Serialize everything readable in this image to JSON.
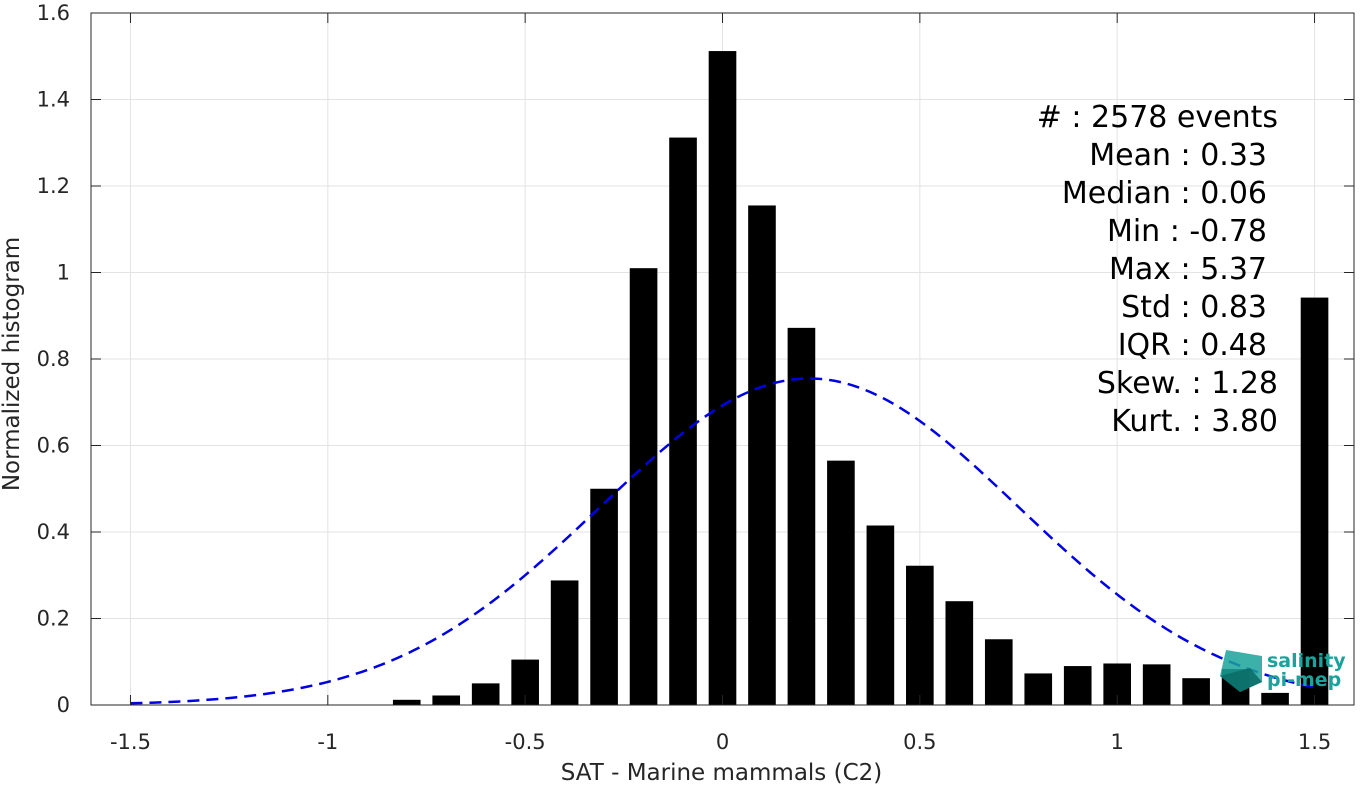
{
  "chart_data": {
    "type": "bar",
    "title": "",
    "xlabel": "SAT - Marine mammals (C2)",
    "ylabel": "Normalized histogram",
    "xlim": [
      -1.6,
      1.6
    ],
    "ylim": [
      0,
      1.6
    ],
    "xticks": [
      -1.5,
      -1,
      -0.5,
      0,
      0.5,
      1,
      1.5
    ],
    "xtick_labels": [
      "-1.5",
      "-1",
      "-0.5",
      "0",
      "0.5",
      "1",
      "1.5"
    ],
    "yticks": [
      0,
      0.2,
      0.4,
      0.6,
      0.8,
      1,
      1.2,
      1.4,
      1.6
    ],
    "ytick_labels": [
      "0",
      "0.2",
      "0.4",
      "0.6",
      "0.8",
      "1",
      "1.2",
      "1.4",
      "1.6"
    ],
    "grid": true,
    "bar_width": 0.07,
    "bars": {
      "x": [
        -0.8,
        -0.7,
        -0.6,
        -0.5,
        -0.4,
        -0.3,
        -0.2,
        -0.1,
        0.0,
        0.1,
        0.2,
        0.3,
        0.4,
        0.5,
        0.6,
        0.7,
        0.8,
        0.9,
        1.0,
        1.1,
        1.2,
        1.3,
        1.4,
        1.5
      ],
      "values": [
        0.012,
        0.022,
        0.05,
        0.105,
        0.288,
        0.5,
        1.01,
        1.312,
        1.512,
        1.155,
        0.872,
        0.565,
        0.415,
        0.322,
        0.24,
        0.152,
        0.073,
        0.09,
        0.096,
        0.094,
        0.062,
        0.083,
        0.028,
        0.942
      ],
      "color": "#000000"
    },
    "fit_curve": {
      "kind": "normal",
      "mean": 0.22,
      "peak": 0.755,
      "sigma": 0.53,
      "x_range": [
        -1.5,
        1.5
      ],
      "color": "#0000e6",
      "style": "dashed"
    },
    "stats": [
      "#  : 2578 events",
      "Mean : 0.33",
      "Median : 0.06",
      "Min : -0.78",
      "Max : 5.37",
      "Std : 0.83",
      "IQR : 0.48",
      "Skew. : 1.28",
      "Kurt. : 3.80"
    ],
    "stats_position": "top-right"
  },
  "logo": {
    "line1": "salinity",
    "line2": "pi-mep",
    "color": "#1aa39a"
  }
}
